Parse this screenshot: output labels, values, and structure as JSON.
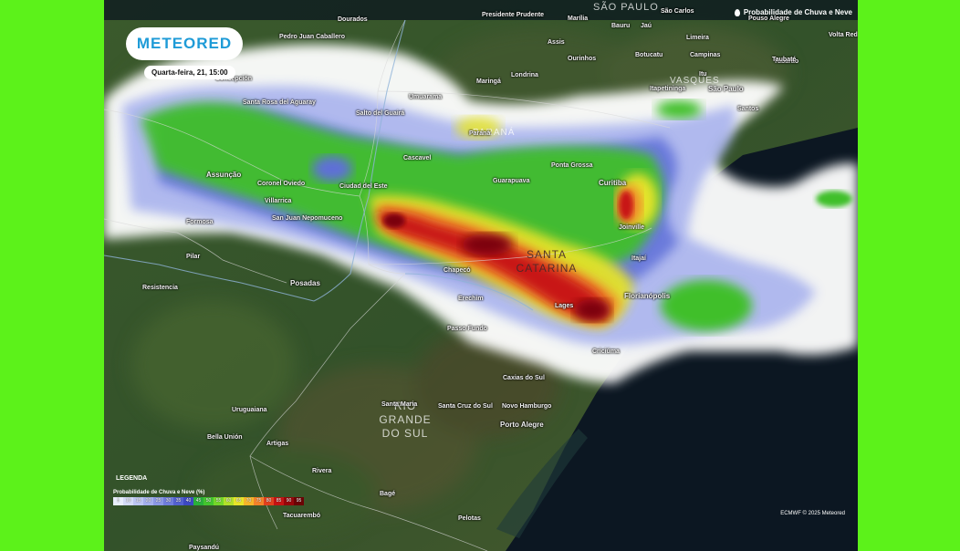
{
  "brand": {
    "logo_text": "METEORED"
  },
  "date_label": "Quarta-feira, 21, 15:00",
  "map_title": "Probabilidade de Chuva e Neve",
  "legend": {
    "header": "LEGENDA",
    "label": "Probabilidade de Chuva e Neve (%)",
    "steps": [
      {
        "value": "5",
        "color": "#e8eefc"
      },
      {
        "value": "10",
        "color": "#d3dbf7"
      },
      {
        "value": "15",
        "color": "#bcc6f2"
      },
      {
        "value": "20",
        "color": "#a4b0ec"
      },
      {
        "value": "25",
        "color": "#8b98e4"
      },
      {
        "value": "30",
        "color": "#6f7ddb"
      },
      {
        "value": "35",
        "color": "#5361cf"
      },
      {
        "value": "40",
        "color": "#3c49c2"
      },
      {
        "value": "45",
        "color": "#29b13a"
      },
      {
        "value": "50",
        "color": "#43c52f"
      },
      {
        "value": "55",
        "color": "#74d62a"
      },
      {
        "value": "60",
        "color": "#b1e02a"
      },
      {
        "value": "65",
        "color": "#e7e52a"
      },
      {
        "value": "70",
        "color": "#f5b52a"
      },
      {
        "value": "75",
        "color": "#f2822a"
      },
      {
        "value": "80",
        "color": "#e0401e"
      },
      {
        "value": "85",
        "color": "#c41313"
      },
      {
        "value": "90",
        "color": "#96060a"
      },
      {
        "value": "95",
        "color": "#6b0305"
      }
    ]
  },
  "credit": "ECMWF © 2025 Meteored",
  "states": [
    "SÃO PAULO",
    "PARANÁ",
    "SANTA CATARINA",
    "RIO GRANDE DO SUL",
    "VASQUES"
  ],
  "cities": [
    "Dourados",
    "Presidente Prudente",
    "Marília",
    "Bauru",
    "Jaú",
    "São Carlos",
    "Pouso Alegre",
    "Volta Redonda",
    "Pedro Juan Caballero",
    "Assis",
    "Limeira",
    "Tubarão",
    "Ourinhos",
    "Botucatu",
    "Campinas",
    "Taubaté",
    "Londrina",
    "Maringá",
    "Concepción",
    "Itu",
    "Itapetininga",
    "São Paulo",
    "Santos",
    "Santa Rosa del Aguaray",
    "Umuarama",
    "Salto del Guairá",
    "Paraná",
    "Ponta Grossa",
    "Cascavel",
    "Assunção",
    "Coronel Oviedo",
    "Ciudad del Este",
    "Guarapuava",
    "Curitiba",
    "Villarrica",
    "San Juan Nepomuceno",
    "Joinville",
    "Itajaí",
    "Formosa",
    "Pilar",
    "Chapecó",
    "Resistencia",
    "Posadas",
    "Erechim",
    "Lages",
    "Florianópolis",
    "Passo Fundo",
    "Criciúma",
    "Caxias do Sul",
    "Santa Maria",
    "Santa Cruz do Sul",
    "Novo Hamburgo",
    "Porto Alegre",
    "Uruguaiana",
    "Bella Unión",
    "Artigas",
    "Rivera",
    "Bagé",
    "Tacuarembó",
    "Pelotas",
    "Paysandú"
  ]
}
